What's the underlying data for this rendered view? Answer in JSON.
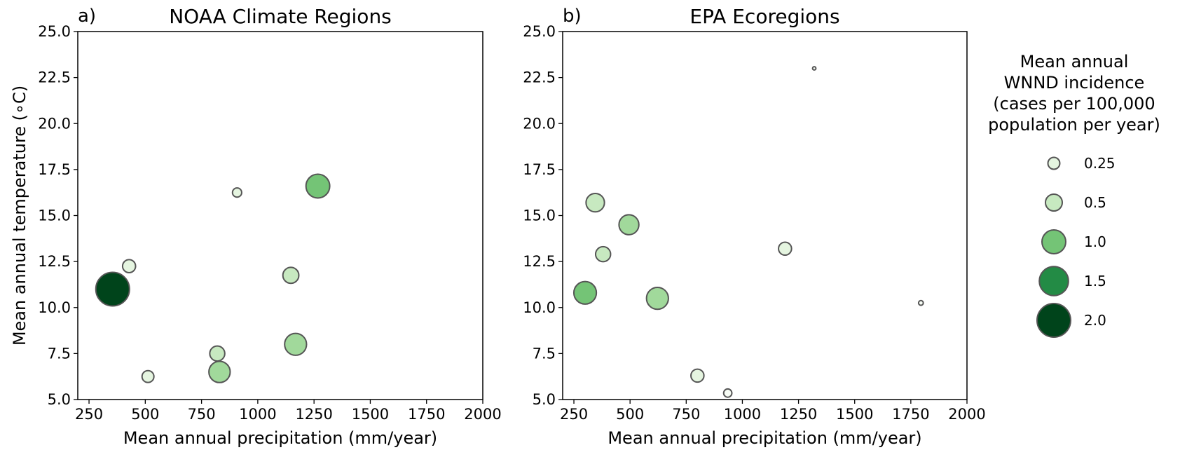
{
  "figure": {
    "colors": {
      "axis": "#000000",
      "marker_edge": "#555555",
      "scale": [
        "#f7fcf5",
        "#e5f5e0",
        "#c7e9c0",
        "#a1d99b",
        "#74c476",
        "#41ab5d",
        "#238b45",
        "#006d2c",
        "#00441b"
      ]
    }
  },
  "legend": {
    "title_lines": [
      "Mean annual",
      "WNND incidence",
      "(cases per 100,000",
      "population per year)"
    ],
    "entries": [
      {
        "label": "0.25",
        "value": 0.25
      },
      {
        "label": "0.5",
        "value": 0.5
      },
      {
        "label": "1.0",
        "value": 1.0
      },
      {
        "label": "1.5",
        "value": 1.5
      },
      {
        "label": "2.0",
        "value": 2.0
      }
    ]
  },
  "chart_data": [
    {
      "type": "scatter",
      "panel_label": "a)",
      "title": "NOAA Climate Regions",
      "xlabel": "Mean annual precipitation (mm/year)",
      "ylabel": "Mean annual temperature (∘C)",
      "xlim": [
        200,
        2000
      ],
      "ylim": [
        5.0,
        25.0
      ],
      "xticks": [
        250,
        500,
        750,
        1000,
        1250,
        1500,
        1750,
        2000
      ],
      "xtick_labels": [
        "250",
        "500",
        "750",
        "1000",
        "1250",
        "1500",
        "1750",
        "2000"
      ],
      "yticks": [
        5.0,
        7.5,
        10.0,
        12.5,
        15.0,
        17.5,
        20.0,
        22.5,
        25.0
      ],
      "ytick_labels": [
        "5.0",
        "7.5",
        "10.0",
        "12.5",
        "15.0",
        "17.5",
        "20.0",
        "22.5",
        "25.0"
      ],
      "grid": false,
      "points": [
        {
          "x": 355,
          "y": 11.0,
          "incidence": 2.0
        },
        {
          "x": 428,
          "y": 12.25,
          "incidence": 0.3
        },
        {
          "x": 512,
          "y": 6.25,
          "incidence": 0.25
        },
        {
          "x": 820,
          "y": 7.5,
          "incidence": 0.4
        },
        {
          "x": 830,
          "y": 6.5,
          "incidence": 0.8
        },
        {
          "x": 908,
          "y": 16.25,
          "incidence": 0.15
        },
        {
          "x": 1147,
          "y": 11.75,
          "incidence": 0.45
        },
        {
          "x": 1168,
          "y": 8.0,
          "incidence": 0.85
        },
        {
          "x": 1267,
          "y": 16.6,
          "incidence": 1.0
        }
      ]
    },
    {
      "type": "scatter",
      "panel_label": "b)",
      "title": "EPA Ecoregions",
      "xlabel": "Mean annual precipitation (mm/year)",
      "ylabel": "",
      "xlim": [
        200,
        2000
      ],
      "ylim": [
        5.0,
        25.0
      ],
      "xticks": [
        250,
        500,
        750,
        1000,
        1250,
        1500,
        1750,
        2000
      ],
      "xtick_labels": [
        "250",
        "500",
        "750",
        "1000",
        "1250",
        "1500",
        "1750",
        "2000"
      ],
      "yticks": [
        5.0,
        7.5,
        10.0,
        12.5,
        15.0,
        17.5,
        20.0,
        22.5,
        25.0
      ],
      "ytick_labels": [
        "5.0",
        "7.5",
        "10.0",
        "12.5",
        "15.0",
        "17.5",
        "20.0",
        "22.5",
        "25.0"
      ],
      "grid": false,
      "points": [
        {
          "x": 300,
          "y": 10.8,
          "incidence": 0.9
        },
        {
          "x": 345,
          "y": 15.7,
          "incidence": 0.6
        },
        {
          "x": 380,
          "y": 12.9,
          "incidence": 0.4
        },
        {
          "x": 495,
          "y": 14.5,
          "incidence": 0.7
        },
        {
          "x": 622,
          "y": 10.5,
          "incidence": 0.85
        },
        {
          "x": 800,
          "y": 6.3,
          "incidence": 0.3
        },
        {
          "x": 935,
          "y": 5.35,
          "incidence": 0.12
        },
        {
          "x": 1190,
          "y": 13.2,
          "incidence": 0.3
        },
        {
          "x": 1320,
          "y": 23.0,
          "incidence": 0.02
        },
        {
          "x": 1795,
          "y": 10.25,
          "incidence": 0.04
        }
      ]
    }
  ]
}
